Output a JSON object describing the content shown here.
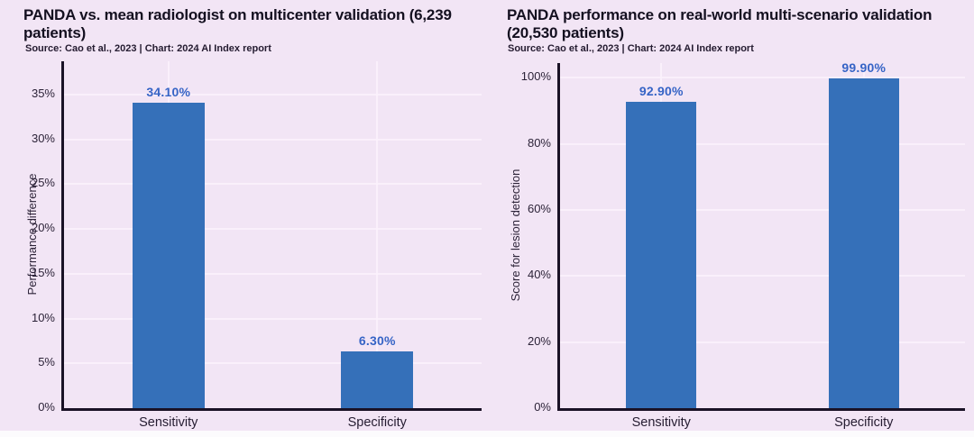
{
  "page": {
    "background": "#f2e5f5",
    "bottom_strip_color": "#fcfbfd"
  },
  "colors": {
    "bar": "#3570b9",
    "value_label": "#3664c6",
    "axis_line": "#1a1226",
    "gridline": "#f8edf9",
    "text": "#241b30"
  },
  "chart_data": [
    {
      "type": "bar",
      "title": "PANDA vs. mean radiologist on multicenter validation (6,239 patients)",
      "subtitle": "Source: Cao et al., 2023 | Chart: 2024 AI Index report",
      "categories": [
        "Sensitivity",
        "Specificity"
      ],
      "values": [
        34.1,
        6.3
      ],
      "value_labels": [
        "34.10%",
        "6.30%"
      ],
      "xlabel": "",
      "ylabel": "Performance difference",
      "yticks": [
        0,
        5,
        10,
        15,
        20,
        25,
        30,
        35
      ],
      "ytick_suffix": "%",
      "ylim": [
        0,
        38.7
      ],
      "grid": true,
      "legend": false
    },
    {
      "type": "bar",
      "title": "PANDA performance on real-world multi-scenario validation (20,530 patients)",
      "subtitle": "Source: Cao et al., 2023 | Chart: 2024 AI Index report",
      "categories": [
        "Sensitivity",
        "Specificity"
      ],
      "values": [
        92.9,
        99.9
      ],
      "value_labels": [
        "92.90%",
        "99.90%"
      ],
      "xlabel": "",
      "ylabel": "Score for lesion detection",
      "yticks": [
        0,
        20,
        40,
        60,
        80,
        100
      ],
      "ytick_suffix": "%",
      "ylim": [
        0,
        104.5
      ],
      "grid": true,
      "legend": false
    }
  ]
}
